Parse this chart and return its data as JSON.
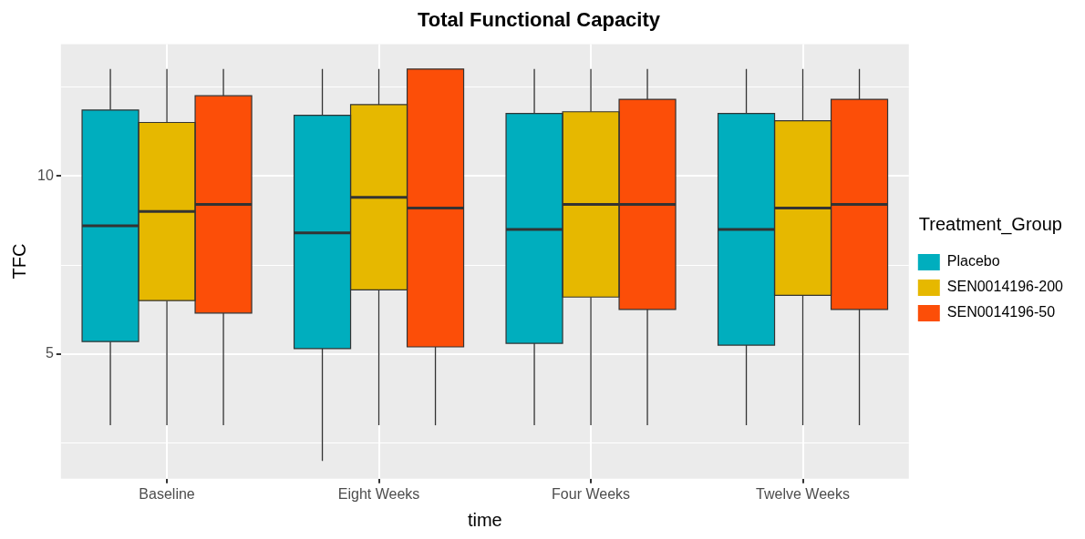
{
  "chart_data": {
    "type": "box",
    "title": "Total Functional Capacity",
    "xlabel": "time",
    "ylabel": "TFC",
    "legend_title": "Treatment_Group",
    "legend": "right",
    "grid": true,
    "categories": [
      "Baseline",
      "Eight Weeks",
      "Four Weeks",
      "Twelve Weeks"
    ],
    "ylim": [
      1.5,
      13.7
    ],
    "yticks": [
      {
        "value": 2.5,
        "label": null
      },
      5,
      {
        "value": 7.5,
        "label": null
      },
      10,
      {
        "value": 12.5,
        "label": null
      }
    ],
    "series": [
      {
        "name": "Placebo",
        "color": "#00aebe",
        "boxes": [
          {
            "low": 3,
            "q1": 5.35,
            "median": 8.6,
            "q3": 11.85,
            "high": 13
          },
          {
            "low": 2,
            "q1": 5.15,
            "median": 8.4,
            "q3": 11.7,
            "high": 13
          },
          {
            "low": 3,
            "q1": 5.3,
            "median": 8.5,
            "q3": 11.75,
            "high": 13
          },
          {
            "low": 3,
            "q1": 5.25,
            "median": 8.5,
            "q3": 11.75,
            "high": 13
          }
        ]
      },
      {
        "name": "SEN0014196-200",
        "color": "#e6b800",
        "boxes": [
          {
            "low": 3,
            "q1": 6.5,
            "median": 9,
            "q3": 11.5,
            "high": 13
          },
          {
            "low": 3,
            "q1": 6.8,
            "median": 9.4,
            "q3": 12,
            "high": 13
          },
          {
            "low": 3,
            "q1": 6.6,
            "median": 9.2,
            "q3": 11.8,
            "high": 13
          },
          {
            "low": 3,
            "q1": 6.65,
            "median": 9.1,
            "q3": 11.55,
            "high": 13
          }
        ]
      },
      {
        "name": "SEN0014196-50",
        "color": "#fc4e08",
        "boxes": [
          {
            "low": 3,
            "q1": 6.15,
            "median": 9.2,
            "q3": 12.25,
            "high": 13
          },
          {
            "low": 3,
            "q1": 5.2,
            "median": 9.1,
            "q3": 13,
            "high": 13
          },
          {
            "low": 3,
            "q1": 6.25,
            "median": 9.2,
            "q3": 12.15,
            "high": 13
          },
          {
            "low": 3,
            "q1": 6.25,
            "median": 9.2,
            "q3": 12.15,
            "high": 13
          }
        ]
      }
    ]
  }
}
